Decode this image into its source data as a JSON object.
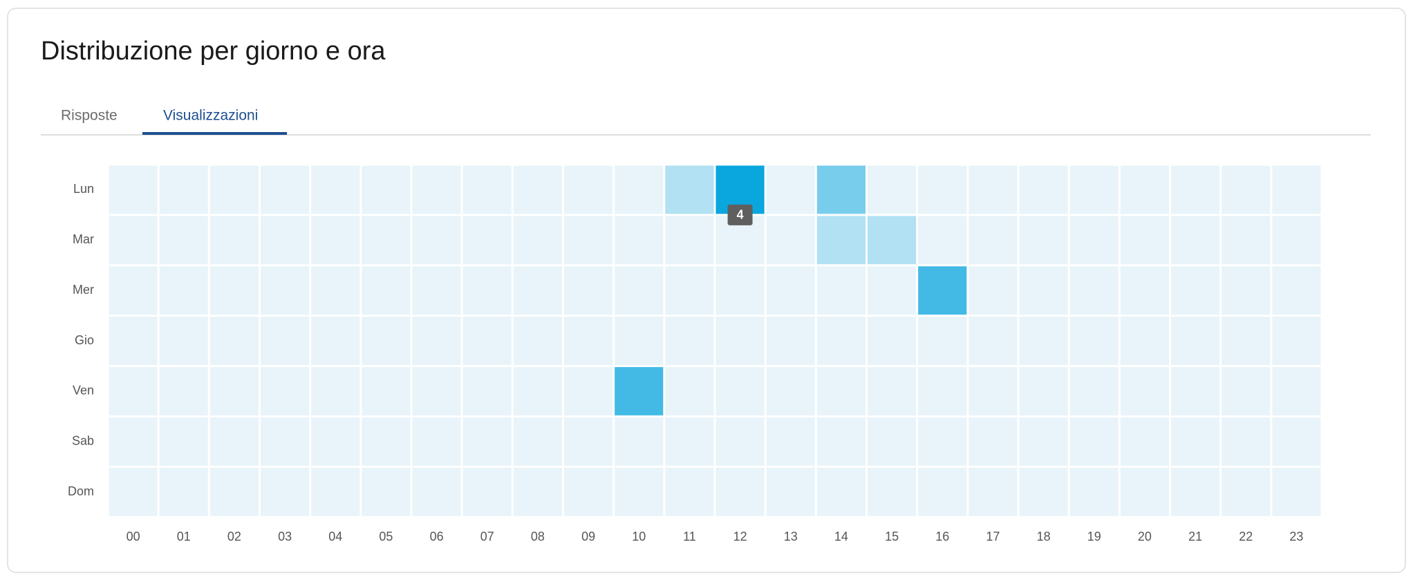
{
  "chart_data": {
    "type": "heatmap",
    "title": "Distribuzione per giorno e ora",
    "tabs": [
      "Risposte",
      "Visualizzazioni"
    ],
    "x_categories": [
      "00",
      "01",
      "02",
      "03",
      "04",
      "05",
      "06",
      "07",
      "08",
      "09",
      "10",
      "11",
      "12",
      "13",
      "14",
      "15",
      "16",
      "17",
      "18",
      "19",
      "20",
      "21",
      "22",
      "23"
    ],
    "y_categories": [
      "Lun",
      "Mar",
      "Mer",
      "Gio",
      "Ven",
      "Sab",
      "Dom"
    ],
    "values": [
      [
        0,
        0,
        0,
        0,
        0,
        0,
        0,
        0,
        0,
        0,
        0,
        1,
        4,
        0,
        2,
        0,
        0,
        0,
        0,
        0,
        0,
        0,
        0,
        0
      ],
      [
        0,
        0,
        0,
        0,
        0,
        0,
        0,
        0,
        0,
        0,
        0,
        0,
        0,
        0,
        1,
        1,
        0,
        0,
        0,
        0,
        0,
        0,
        0,
        0
      ],
      [
        0,
        0,
        0,
        0,
        0,
        0,
        0,
        0,
        0,
        0,
        0,
        0,
        0,
        0,
        0,
        0,
        3,
        0,
        0,
        0,
        0,
        0,
        0,
        0
      ],
      [
        0,
        0,
        0,
        0,
        0,
        0,
        0,
        0,
        0,
        0,
        0,
        0,
        0,
        0,
        0,
        0,
        0,
        0,
        0,
        0,
        0,
        0,
        0,
        0
      ],
      [
        0,
        0,
        0,
        0,
        0,
        0,
        0,
        0,
        0,
        0,
        3,
        0,
        0,
        0,
        0,
        0,
        0,
        0,
        0,
        0,
        0,
        0,
        0,
        0
      ],
      [
        0,
        0,
        0,
        0,
        0,
        0,
        0,
        0,
        0,
        0,
        0,
        0,
        0,
        0,
        0,
        0,
        0,
        0,
        0,
        0,
        0,
        0,
        0,
        0
      ],
      [
        0,
        0,
        0,
        0,
        0,
        0,
        0,
        0,
        0,
        0,
        0,
        0,
        0,
        0,
        0,
        0,
        0,
        0,
        0,
        0,
        0,
        0,
        0,
        0
      ]
    ],
    "color_range": [
      "#e8f4f9",
      "#0aa6de"
    ]
  }
}
